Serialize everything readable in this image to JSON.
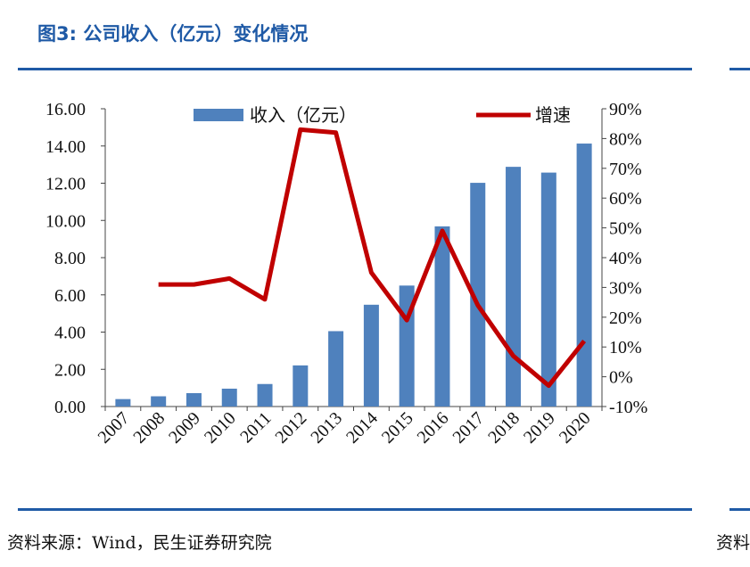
{
  "header": {
    "title": "图3: 公司收入（亿元）变化情况"
  },
  "footer": {
    "source": "资料来源：Wind，民生证券研究院",
    "next_panel_source_fragment": "资料"
  },
  "colors": {
    "brand_blue": "#1f5aa6",
    "bar": "#4f81bd",
    "line": "#c00000"
  },
  "chart_data": {
    "type": "bar+line",
    "categories": [
      "2007",
      "2008",
      "2009",
      "2010",
      "2011",
      "2012",
      "2013",
      "2014",
      "2015",
      "2016",
      "2017",
      "2018",
      "2019",
      "2020"
    ],
    "series": [
      {
        "name": "收入（亿元）",
        "type": "bar",
        "axis": "left",
        "values": [
          0.4,
          0.55,
          0.72,
          0.96,
          1.21,
          2.21,
          4.05,
          5.47,
          6.5,
          9.68,
          12.02,
          12.88,
          12.57,
          14.13
        ]
      },
      {
        "name": "增速",
        "type": "line",
        "axis": "right",
        "values": [
          null,
          31,
          31,
          33,
          26,
          83,
          82,
          35,
          19,
          49,
          24,
          7,
          -3,
          12
        ]
      }
    ],
    "y_left": {
      "ylim": [
        0,
        16
      ],
      "ticks": [
        "0.00",
        "2.00",
        "4.00",
        "6.00",
        "8.00",
        "10.00",
        "12.00",
        "14.00",
        "16.00"
      ]
    },
    "y_right": {
      "ylim": [
        -10,
        90
      ],
      "ticks": [
        "-10%",
        "0%",
        "10%",
        "20%",
        "30%",
        "40%",
        "50%",
        "60%",
        "70%",
        "80%",
        "90%"
      ]
    },
    "legend": {
      "placement": "top"
    },
    "grid": false
  }
}
